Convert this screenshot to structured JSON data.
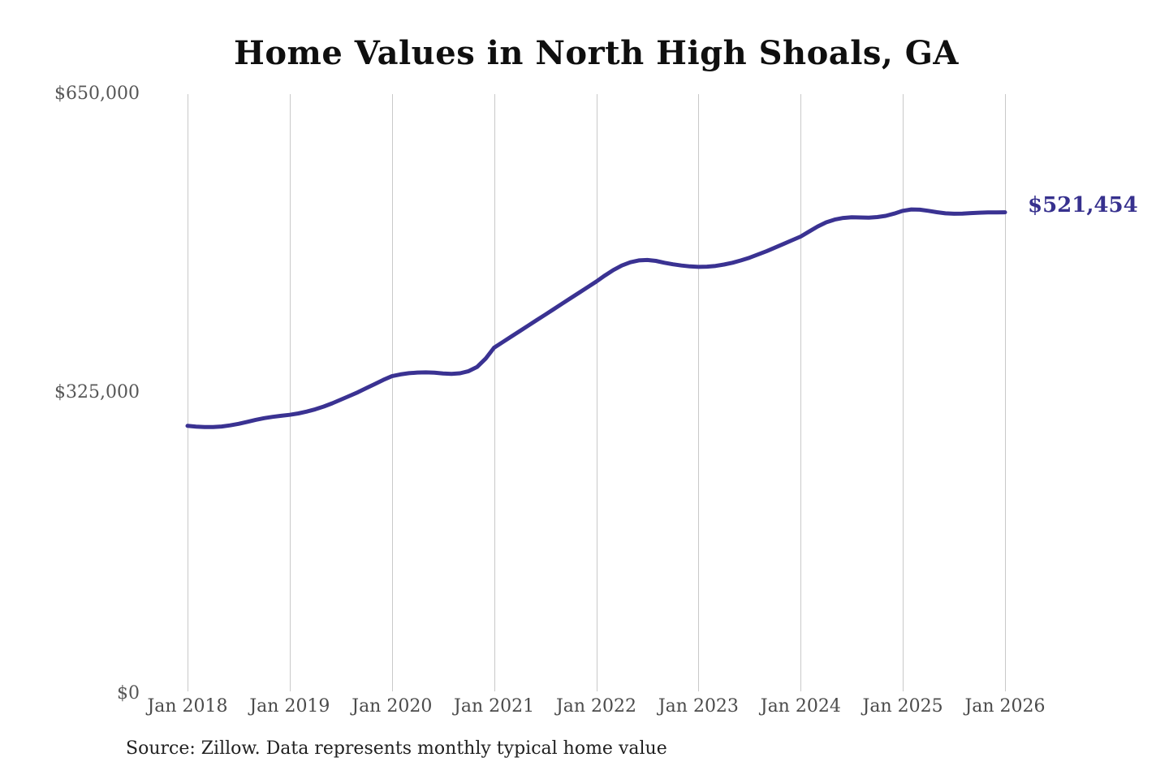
{
  "source_note": "Source: Zillow. Data represents monthly typical home value",
  "chart_data": {
    "type": "line",
    "title": "Home Values in North High Shoals, GA",
    "x_tick_labels": [
      "Jan 2018",
      "Jan 2019",
      "Jan 2020",
      "Jan 2021",
      "Jan 2022",
      "Jan 2023",
      "Jan 2024",
      "Jan 2025",
      "Jan 2026"
    ],
    "y_tick_labels": [
      "$650,000",
      "$325,000",
      "$0"
    ],
    "ylim": [
      0,
      650000
    ],
    "xlabel": "",
    "ylabel": "",
    "grid": "vertical-only",
    "legend": "none",
    "line_color": "#3a3292",
    "end_label": "$521,454",
    "end_value": 521454,
    "series": [
      {
        "name": "Typical home value",
        "start": "Jan 2018",
        "frequency": "monthly",
        "values": [
          289000,
          288200,
          287600,
          287700,
          288300,
          289500,
          291200,
          293300,
          295500,
          297400,
          298800,
          299900,
          301000,
          302500,
          304500,
          307000,
          310000,
          313500,
          317500,
          321500,
          325500,
          330000,
          334500,
          339000,
          343000,
          345000,
          346300,
          347000,
          347200,
          346800,
          346000,
          345500,
          346200,
          348500,
          353000,
          362000,
          374000,
          380000,
          386000,
          392000,
          398000,
          404000,
          410000,
          416000,
          422000,
          428000,
          434000,
          440000,
          446000,
          452500,
          458500,
          463500,
          467000,
          469000,
          469500,
          468500,
          466500,
          464800,
          463500,
          462500,
          462000,
          462200,
          463000,
          464500,
          466500,
          469000,
          472000,
          475500,
          479000,
          483000,
          487000,
          491000,
          495000,
          500500,
          506000,
          510500,
          513500,
          515200,
          516000,
          515800,
          515600,
          516200,
          517500,
          520000,
          523000,
          524500,
          524200,
          523000,
          521500,
          520300,
          519800,
          520000,
          520500,
          521000,
          521200,
          521350,
          521454
        ]
      }
    ]
  },
  "colors": {
    "line": "#3a3292",
    "annotation": "#37318e",
    "gridline": "#c9c9c9",
    "y_axis_label": "#575757",
    "x_axis_label": "#4b4b4b",
    "title": "#0f0f0f",
    "source": "#212121",
    "background": "#ffffff"
  }
}
